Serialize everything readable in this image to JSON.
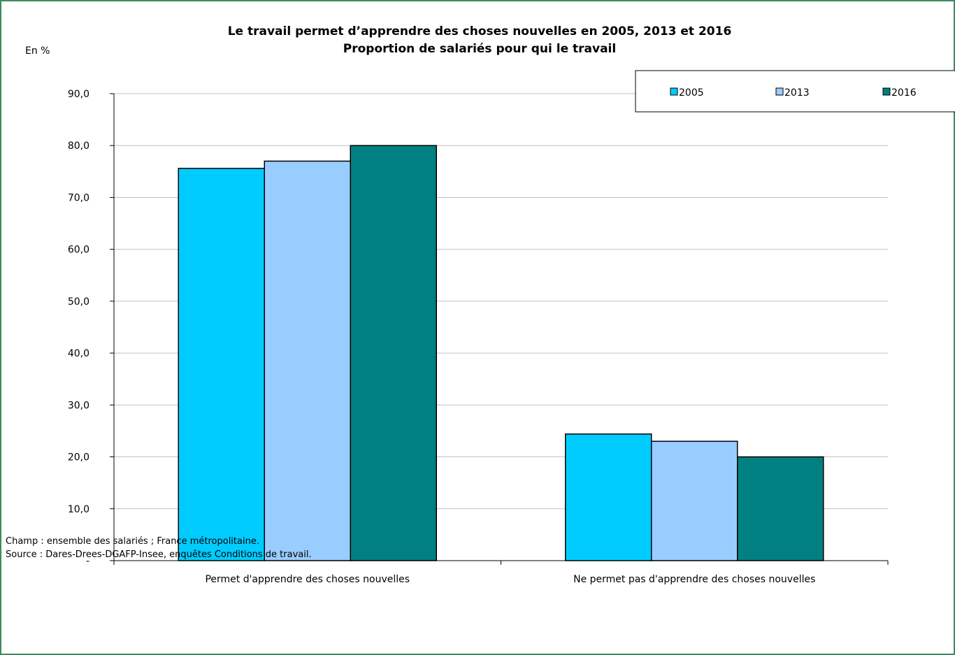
{
  "chart_data": {
    "type": "bar",
    "title_line1": "Le travail permet d’apprendre des choses nouvelles en 2005, 2013 et 2016",
    "title_line2": "Proportion de salariés pour qui le travail",
    "ylabel": "En %",
    "ylim": [
      0,
      90
    ],
    "yticks": [
      "-",
      "10,0",
      "20,0",
      "30,0",
      "40,0",
      "50,0",
      "60,0",
      "70,0",
      "80,0",
      "90,0"
    ],
    "ytick_values": [
      0,
      10,
      20,
      30,
      40,
      50,
      60,
      70,
      80,
      90
    ],
    "grid": true,
    "legend_position": "top-right",
    "categories": [
      "Permet d'apprendre des choses nouvelles",
      "Ne permet pas d'apprendre des choses nouvelles"
    ],
    "series": [
      {
        "name": "2005",
        "color": "#00ccff",
        "values": [
          75.6,
          24.4
        ]
      },
      {
        "name": "2013",
        "color": "#99ccff",
        "values": [
          77.0,
          23.0
        ]
      },
      {
        "name": "2016",
        "color": "#008080",
        "values": [
          80.0,
          20.0
        ]
      }
    ]
  },
  "footnotes": {
    "champ": "Champ : ensemble des salariés ; France métropolitaine.",
    "source": "Source : Dares-Drees-DGAFP-Insee, enquêtes Conditions de travail."
  }
}
